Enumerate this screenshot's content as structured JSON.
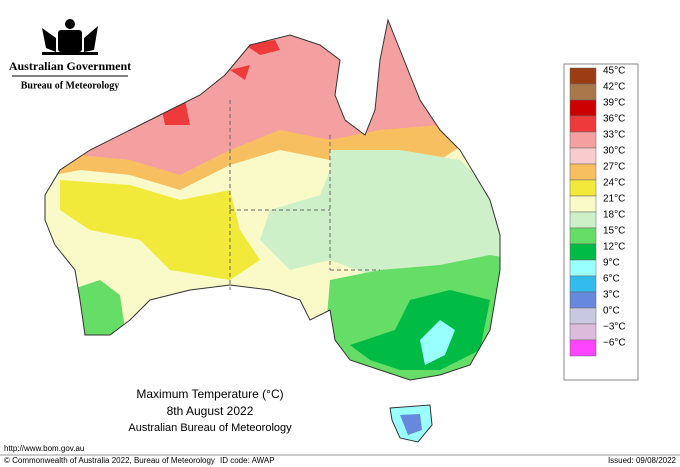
{
  "header": {
    "government": "Australian Government",
    "agency": "Bureau of Meteorology"
  },
  "map": {
    "title": "Maximum Temperature (°C)",
    "date": "8th August 2022",
    "source": "Australian Bureau of Meteorology"
  },
  "legend": [
    {
      "label": "45°C",
      "color": "#9c3c14"
    },
    {
      "label": "42°C",
      "color": "#a8784a"
    },
    {
      "label": "39°C",
      "color": "#cc0000"
    },
    {
      "label": "36°C",
      "color": "#ee3a3a"
    },
    {
      "label": "33°C",
      "color": "#f4a0a0"
    },
    {
      "label": "30°C",
      "color": "#f8cccc"
    },
    {
      "label": "27°C",
      "color": "#f8bf60"
    },
    {
      "label": "24°C",
      "color": "#f2ea3a"
    },
    {
      "label": "21°C",
      "color": "#fafac8"
    },
    {
      "label": "18°C",
      "color": "#cdf0c8"
    },
    {
      "label": "15°C",
      "color": "#66dd66"
    },
    {
      "label": "12°C",
      "color": "#00bb44"
    },
    {
      "label": "9°C",
      "color": "#99ffff"
    },
    {
      "label": "6°C",
      "color": "#33bbee"
    },
    {
      "label": "3°C",
      "color": "#6688dd"
    },
    {
      "label": "0°C",
      "color": "#c8c8e0"
    },
    {
      "label": "−3°C",
      "color": "#ddbbdd"
    },
    {
      "label": "−6°C",
      "color": "#ff44ff"
    }
  ],
  "footer": {
    "url": "http://www.bom.gov.au",
    "copyright": "© Commonwealth of Australia 2022, Bureau of Meteorology",
    "id_code": "ID code: AWAP",
    "issued": "Issued: 09/08/2022"
  }
}
